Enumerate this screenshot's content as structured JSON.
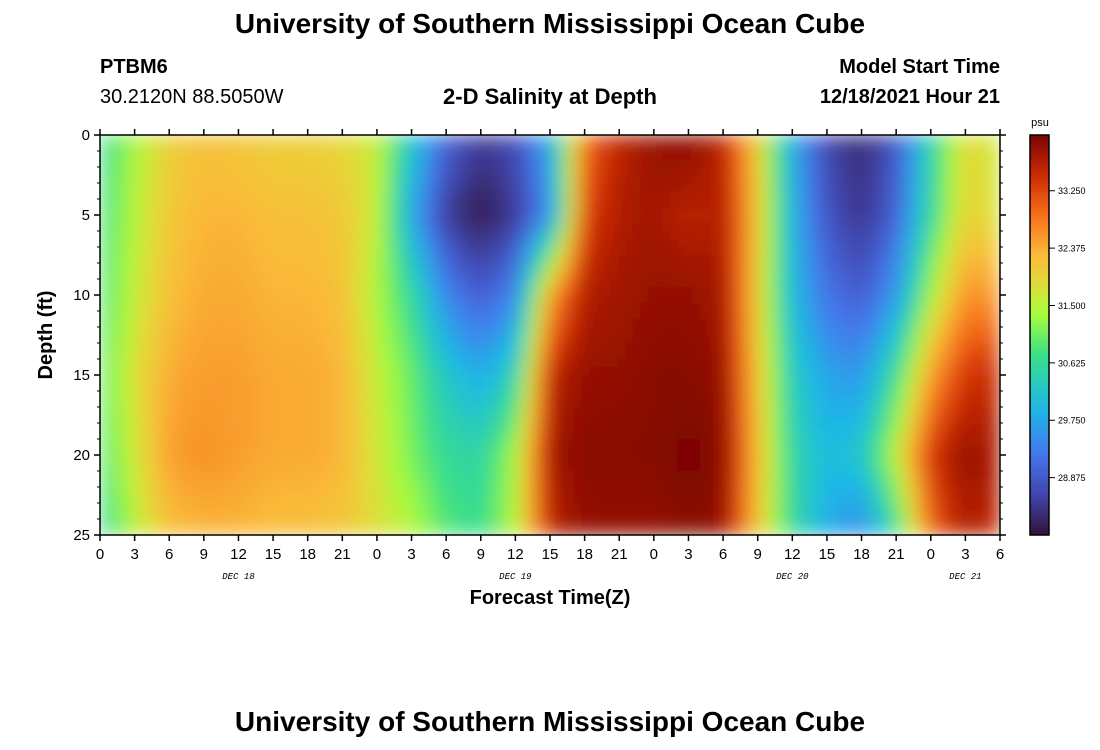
{
  "header": {
    "title": "University of Southern Mississippi Ocean Cube",
    "station": "PTBM6",
    "coords": "30.2120N  88.5050W",
    "subtitle": "2-D Salinity at Depth",
    "start_label": "Model Start Time",
    "start_value": "12/18/2021 Hour 21",
    "footer_title": "University of Southern Mississippi Ocean Cube"
  },
  "chart_data": {
    "type": "heatmap",
    "title": "2-D Salinity at Depth",
    "xlabel": "Forecast Time(Z)",
    "ylabel": "Depth (ft)",
    "x_ticks": [
      "0",
      "3",
      "6",
      "9",
      "12",
      "15",
      "18",
      "21",
      "0",
      "3",
      "6",
      "9",
      "12",
      "15",
      "18",
      "21",
      "0",
      "3",
      "6",
      "9",
      "12",
      "15",
      "18",
      "21",
      "0",
      "3",
      "6"
    ],
    "date_labels": [
      "DEC 18",
      "DEC 19",
      "DEC 20",
      "DEC 21"
    ],
    "x_range_hours": [
      0,
      78
    ],
    "y_ticks": [
      "0",
      "5",
      "10",
      "15",
      "20",
      "25"
    ],
    "ylim": [
      0,
      25
    ],
    "colorbar": {
      "unit": "psu",
      "ticks": [
        "33.250",
        "32.375",
        "31.500",
        "30.625",
        "29.750",
        "28.875"
      ],
      "range": [
        28.0,
        34.1
      ]
    },
    "depths_ft": [
      0,
      5,
      10,
      15,
      20,
      25
    ],
    "hours": [
      0,
      3,
      6,
      9,
      12,
      15,
      18,
      21,
      24,
      27,
      30,
      33,
      36,
      39,
      42,
      45,
      48,
      51,
      54,
      57,
      60,
      63,
      66,
      69,
      72,
      75,
      78
    ],
    "salinity": [
      [
        30.6,
        31.4,
        32.0,
        32.2,
        32.1,
        32.0,
        32.0,
        31.9,
        31.6,
        30.2,
        29.0,
        28.5,
        28.7,
        29.8,
        32.9,
        33.6,
        33.9,
        34.0,
        33.6,
        32.0,
        29.8,
        28.6,
        28.3,
        28.8,
        30.5,
        31.9,
        31.6
      ],
      [
        30.7,
        31.5,
        32.1,
        32.3,
        32.3,
        32.2,
        32.2,
        32.1,
        31.6,
        29.8,
        28.5,
        28.1,
        28.5,
        29.5,
        33.3,
        33.7,
        33.8,
        33.6,
        33.7,
        32.1,
        29.9,
        28.8,
        28.4,
        29.0,
        30.6,
        32.0,
        31.7
      ],
      [
        30.8,
        31.6,
        32.2,
        32.4,
        32.4,
        32.3,
        32.3,
        32.2,
        31.4,
        30.6,
        29.4,
        28.9,
        29.4,
        32.5,
        33.7,
        33.8,
        33.9,
        33.9,
        33.8,
        32.0,
        30.0,
        29.2,
        28.9,
        29.6,
        31.4,
        32.6,
        32.5
      ],
      [
        30.9,
        31.8,
        32.4,
        32.5,
        32.5,
        32.4,
        32.4,
        32.3,
        31.6,
        31.0,
        30.2,
        29.8,
        30.4,
        33.6,
        33.9,
        33.9,
        34.0,
        34.0,
        33.9,
        32.1,
        30.3,
        29.7,
        29.6,
        30.7,
        32.5,
        33.4,
        33.5
      ],
      [
        30.8,
        31.7,
        32.5,
        32.6,
        32.5,
        32.4,
        32.4,
        32.3,
        31.7,
        31.1,
        30.6,
        30.5,
        31.4,
        33.8,
        34.0,
        34.0,
        34.0,
        34.1,
        34.0,
        32.2,
        30.5,
        30.0,
        30.2,
        31.6,
        33.4,
        33.9,
        33.7
      ],
      [
        30.5,
        31.5,
        32.2,
        32.3,
        32.3,
        32.2,
        32.2,
        32.1,
        31.8,
        31.5,
        30.9,
        30.7,
        31.5,
        33.6,
        33.9,
        33.9,
        33.9,
        34.0,
        33.9,
        32.1,
        30.6,
        29.8,
        29.4,
        30.6,
        33.0,
        33.7,
        33.5
      ]
    ]
  }
}
